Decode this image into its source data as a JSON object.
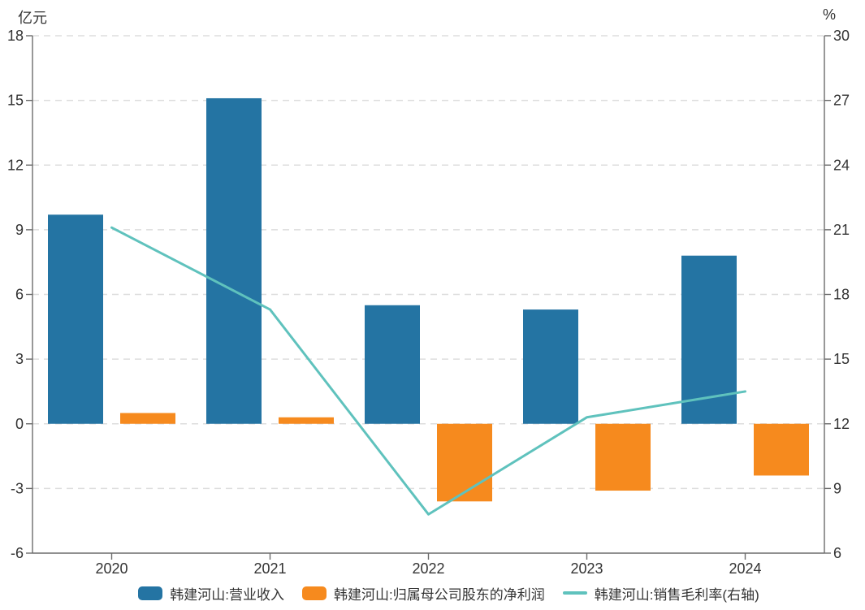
{
  "chart_data": {
    "type": "bar+line dual-axis",
    "categories": [
      "2020",
      "2021",
      "2022",
      "2023",
      "2024"
    ],
    "series": [
      {
        "name": "韩建河山:营业收入",
        "type": "bar",
        "axis": "left",
        "color": "#2474A3",
        "values": [
          9.7,
          15.1,
          5.5,
          5.3,
          7.8
        ]
      },
      {
        "name": "韩建河山:归属母公司股东的净利润",
        "type": "bar",
        "axis": "left",
        "color": "#F68A1E",
        "values": [
          0.5,
          0.3,
          -3.6,
          -3.1,
          -2.4
        ]
      },
      {
        "name": "韩建河山:销售毛利率(右轴)",
        "type": "line",
        "axis": "right",
        "color": "#5FC2BD",
        "values": [
          21.1,
          17.3,
          7.8,
          12.3,
          13.5
        ]
      }
    ],
    "left_axis": {
      "label": "亿元",
      "min": -6,
      "max": 18,
      "ticks": [
        18,
        15,
        12,
        9,
        6,
        3,
        0,
        -3,
        -6
      ]
    },
    "right_axis": {
      "label": "%",
      "min": 6,
      "max": 30,
      "ticks": [
        30,
        27,
        24,
        21,
        18,
        15,
        12,
        9,
        6
      ]
    },
    "grid": "horizontal dashed lines at every tick",
    "legend_position": "bottom",
    "colors": {
      "grid_line": "#DDDDDD",
      "axis_line": "#6B6B6B",
      "tick_text": "#333333",
      "background": "#FFFFFF"
    }
  }
}
